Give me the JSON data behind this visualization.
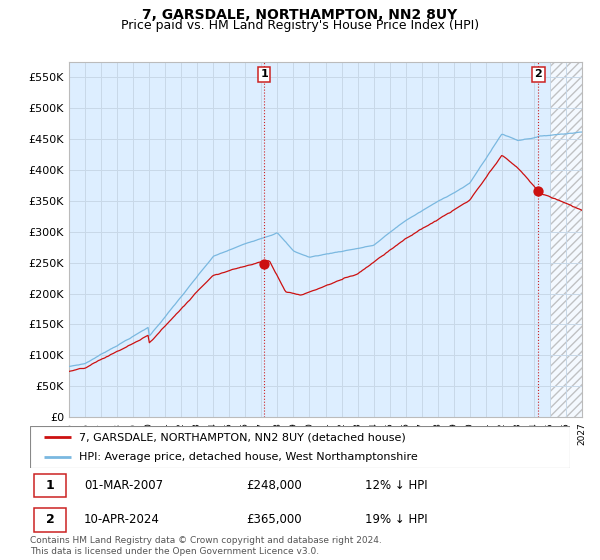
{
  "title": "7, GARSDALE, NORTHAMPTON, NN2 8UY",
  "subtitle": "Price paid vs. HM Land Registry's House Price Index (HPI)",
  "ylim": [
    0,
    575000
  ],
  "yticks": [
    0,
    50000,
    100000,
    150000,
    200000,
    250000,
    300000,
    350000,
    400000,
    450000,
    500000,
    550000
  ],
  "x_start_year": 1995,
  "x_end_year": 2027,
  "sale1_year": 2007.17,
  "sale1_price": 248000,
  "sale1_label": "1",
  "sale2_year": 2024.28,
  "sale2_price": 365000,
  "sale2_label": "2",
  "hpi_line_color": "#7ab8e0",
  "price_line_color": "#cc1111",
  "vline_color": "#cc2222",
  "grid_color": "#c8d8e8",
  "background_color": "#ddeeff",
  "plot_bg_color": "#ddeeff",
  "legend_entry1": "7, GARSDALE, NORTHAMPTON, NN2 8UY (detached house)",
  "legend_entry2": "HPI: Average price, detached house, West Northamptonshire",
  "table_row1_num": "1",
  "table_row1_date": "01-MAR-2007",
  "table_row1_price": "£248,000",
  "table_row1_hpi": "12% ↓ HPI",
  "table_row2_num": "2",
  "table_row2_date": "10-APR-2024",
  "table_row2_price": "£365,000",
  "table_row2_hpi": "19% ↓ HPI",
  "footnote": "Contains HM Land Registry data © Crown copyright and database right 2024.\nThis data is licensed under the Open Government Licence v3.0.",
  "title_fontsize": 10,
  "subtitle_fontsize": 9
}
